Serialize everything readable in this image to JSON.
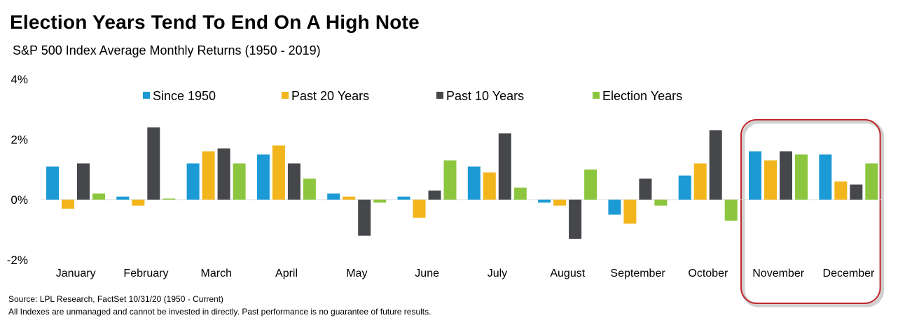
{
  "title": "Election Years Tend To End On A High Note",
  "subtitle": "S&P 500 Index Average Monthly Returns (1950 - 2019)",
  "footer": {
    "source": "Source: LPL Research, FactSet 10/31/20 (1950 - Current)",
    "disclaimer": "All Indexes are unmanaged and cannot be invested in directly. Past performance is no guarantee of future results."
  },
  "highlight": {
    "categories": [
      "November",
      "December"
    ],
    "color": "#c0272d"
  },
  "chart_data": {
    "type": "bar",
    "title": "Election Years Tend To End On A High Note",
    "subtitle": "S&P 500 Index Average Monthly Returns (1950 - 2019)",
    "categories": [
      "January",
      "February",
      "March",
      "April",
      "May",
      "June",
      "July",
      "August",
      "September",
      "October",
      "November",
      "December"
    ],
    "series": [
      {
        "name": "Since 1950",
        "color": "#1c9ad6",
        "values": [
          1.1,
          0.1,
          1.2,
          1.5,
          0.2,
          0.1,
          1.1,
          -0.1,
          -0.5,
          0.8,
          1.6,
          1.5
        ]
      },
      {
        "name": "Past 20 Years",
        "color": "#f2b51c",
        "values": [
          -0.3,
          -0.2,
          1.6,
          1.8,
          0.1,
          -0.6,
          0.9,
          -0.2,
          -0.8,
          1.2,
          1.3,
          0.6
        ]
      },
      {
        "name": "Past 10 Years",
        "color": "#45474b",
        "values": [
          1.2,
          2.4,
          1.7,
          1.2,
          -1.2,
          0.3,
          2.2,
          -1.3,
          0.7,
          2.3,
          1.6,
          0.5
        ]
      },
      {
        "name": "Election Years",
        "color": "#8cc63e",
        "values": [
          0.2,
          0.0,
          1.2,
          0.7,
          -0.1,
          1.3,
          0.4,
          1.0,
          -0.2,
          -0.7,
          1.5,
          1.2
        ]
      }
    ],
    "yticks": [
      "4%",
      "2%",
      "0%",
      "-2%"
    ],
    "ylim": [
      -2,
      4
    ],
    "grid": false,
    "legend_position": "top"
  }
}
